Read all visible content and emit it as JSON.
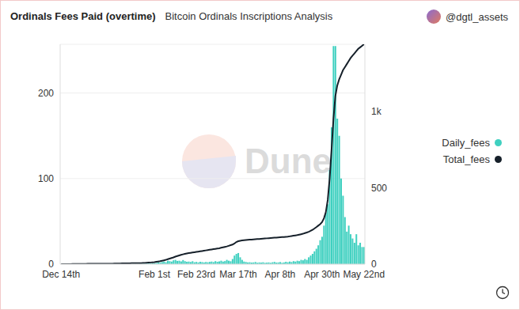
{
  "chart_data": {
    "type": "bar",
    "title": "Ordinals Fees Paid (overtime)",
    "subtitle": "Bitcoin Ordinals Inscriptions Analysis",
    "author": "@dgtl_assets",
    "watermark": "Dune",
    "legend": "right",
    "grid": true,
    "categories": [
      "Dec 14th",
      null,
      null,
      null,
      null,
      null,
      null,
      null,
      null,
      null,
      null,
      null,
      null,
      null,
      null,
      null,
      null,
      null,
      null,
      null,
      null,
      null,
      null,
      null,
      null,
      null,
      null,
      null,
      null,
      null,
      null,
      null,
      null,
      null,
      null,
      null,
      null,
      null,
      null,
      null,
      null,
      null,
      null,
      null,
      null,
      null,
      null,
      null,
      null,
      "Feb 1st",
      null,
      null,
      null,
      null,
      null,
      null,
      null,
      null,
      null,
      null,
      null,
      null,
      null,
      null,
      null,
      null,
      null,
      null,
      null,
      null,
      null,
      "Feb 23rd",
      null,
      null,
      null,
      null,
      null,
      null,
      null,
      null,
      null,
      null,
      null,
      null,
      null,
      null,
      null,
      null,
      null,
      null,
      null,
      null,
      null,
      "Mar 17th",
      null,
      null,
      null,
      null,
      null,
      null,
      null,
      null,
      null,
      null,
      null,
      null,
      null,
      null,
      null,
      null,
      null,
      null,
      null,
      null,
      null,
      "Apr 8th",
      null,
      null,
      null,
      null,
      null,
      null,
      null,
      null,
      null,
      null,
      null,
      null,
      null,
      null,
      null,
      null,
      null,
      null,
      null,
      null,
      null,
      "Apr 30th",
      null,
      null,
      null,
      null,
      null,
      null,
      null,
      null,
      null,
      null,
      null,
      null,
      null,
      null,
      null,
      null,
      null,
      null,
      null,
      null,
      null,
      "May 22nd"
    ],
    "series": [
      {
        "name": "Daily_fees",
        "type": "bar",
        "color": "#3fd0c0",
        "values": [
          0.1,
          0.1,
          0.1,
          0.1,
          0.2,
          0.1,
          0.1,
          0.1,
          0.1,
          0.1,
          0.1,
          0.1,
          0.1,
          0.1,
          0.1,
          0.1,
          0.1,
          0.1,
          0.1,
          0.1,
          0.1,
          0.1,
          0.1,
          0.1,
          0.1,
          0.1,
          0.1,
          0.1,
          0.2,
          0.2,
          0.2,
          0.2,
          0.2,
          0.2,
          0.2,
          0.2,
          0.2,
          0.2,
          0.3,
          0.4,
          0.3,
          0.5,
          0.4,
          0.6,
          0.5,
          0.8,
          0.7,
          0.9,
          1.0,
          1.2,
          1.5,
          2,
          1.8,
          2.5,
          3,
          2.2,
          4,
          3.5,
          3,
          4.5,
          5,
          3.8,
          4,
          3.2,
          4.8,
          3.5,
          2.8,
          3,
          2.5,
          3.4,
          2.2,
          2.6,
          2,
          2.8,
          2.4,
          2,
          2.5,
          2.2,
          2.6,
          3,
          2.4,
          3.5,
          2.8,
          3.2,
          4,
          3,
          3.6,
          5,
          4,
          3.4,
          6,
          10,
          12,
          13,
          8,
          5,
          3,
          2.5,
          2,
          2.2,
          1.8,
          2,
          2.5,
          1.6,
          2,
          1.8,
          2.2,
          1.5,
          1.8,
          2,
          1.5,
          2.2,
          2.6,
          1.8,
          2,
          2.4,
          1.6,
          2,
          2.8,
          2.2,
          3,
          2.5,
          3.5,
          3,
          4,
          3.5,
          5,
          4.5,
          6,
          5,
          8,
          10,
          12,
          15,
          18,
          22,
          28,
          32,
          45,
          60,
          70,
          110,
          160,
          255,
          255,
          170,
          150,
          100,
          80,
          55,
          38,
          45,
          35,
          30,
          25,
          35,
          22,
          25,
          20,
          20
        ]
      },
      {
        "name": "Total_fees",
        "type": "line",
        "axis": "y2",
        "color": "#16202a",
        "values": [
          0,
          0,
          0,
          0,
          0,
          0,
          1,
          1,
          1,
          1,
          1,
          1,
          1,
          1,
          2,
          2,
          2,
          2,
          2,
          2,
          2,
          2,
          3,
          3,
          3,
          3,
          3,
          3,
          4,
          4,
          4,
          4,
          5,
          5,
          5,
          5,
          5,
          6,
          6,
          6,
          6,
          7,
          7,
          8,
          8,
          9,
          10,
          11,
          12,
          13,
          15,
          17,
          19,
          22,
          25,
          28,
          32,
          36,
          40,
          44,
          49,
          53,
          57,
          61,
          64,
          67,
          70,
          72,
          74,
          76,
          78,
          80,
          82,
          84,
          86,
          88,
          90,
          92,
          94,
          96,
          98,
          100,
          102,
          104,
          107,
          110,
          113,
          116,
          120,
          124,
          128,
          135,
          145,
          150,
          153,
          155,
          157,
          158,
          159,
          160,
          161,
          162,
          163,
          164,
          165,
          166,
          167,
          168,
          169,
          170,
          171,
          172,
          173,
          174,
          175,
          176,
          177,
          178,
          179,
          180,
          182,
          184,
          186,
          188,
          190,
          193,
          196,
          199,
          203,
          207,
          212,
          218,
          225,
          233,
          242,
          252,
          262,
          275,
          300,
          340,
          420,
          560,
          750,
          950,
          1100,
          1170,
          1210,
          1240,
          1270,
          1290,
          1310,
          1330,
          1350,
          1365,
          1380,
          1395,
          1410,
          1420,
          1430,
          1440
        ]
      }
    ],
    "ylim": [
      0,
      257
    ],
    "yticks": [
      0,
      100,
      200
    ],
    "y2lim": [
      0,
      1440
    ],
    "y2ticks": [
      0,
      500,
      {
        "value": 1000,
        "label": "1k"
      }
    ]
  }
}
